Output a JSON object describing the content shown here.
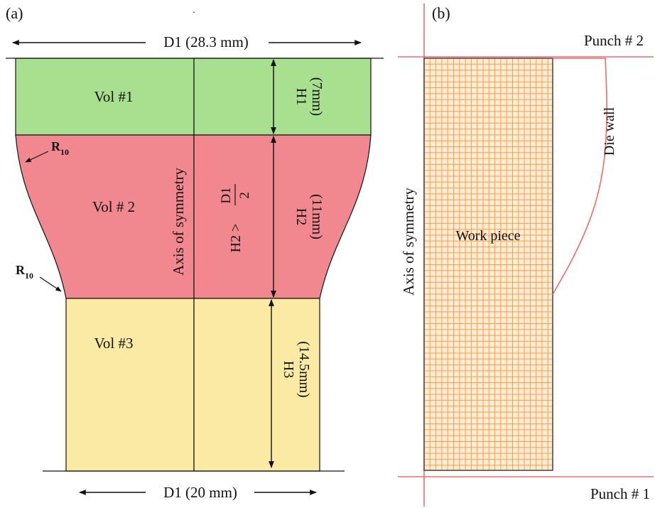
{
  "panel_a": {
    "label": "(a)",
    "top_dimension": "D1 (28.3 mm)",
    "bottom_dimension": "D1 (20 mm)",
    "vol1": "Vol #1",
    "vol2": "Vol # 2",
    "vol3": "Vol #3",
    "h1_label": "H1",
    "h1_value": "(7mm)",
    "h2_label": "H2",
    "h2_value": "(11mm)",
    "h3_label": "H3",
    "h3_value": "(14.5mm)",
    "h2_condition_lhs": "H2 >",
    "h2_condition_num": "D1",
    "h2_condition_den": "2",
    "axis_label": "Axis of symmetry",
    "radius_main": "R",
    "radius_sub": "10",
    "colors": {
      "vol1": "#a8e08f",
      "vol2": "#f2888f",
      "vol3": "#fbeaa3"
    }
  },
  "panel_b": {
    "label": "(b)",
    "punch_top": "Punch # 2",
    "punch_bottom": "Punch # 1",
    "die_wall": "Die wall",
    "workpiece": "Work piece",
    "axis_label": "Axis of symmetry",
    "colors": {
      "mesh": "#f5a14a",
      "mesh_bg": "#fdebd4",
      "die": "#f06a6a"
    }
  }
}
